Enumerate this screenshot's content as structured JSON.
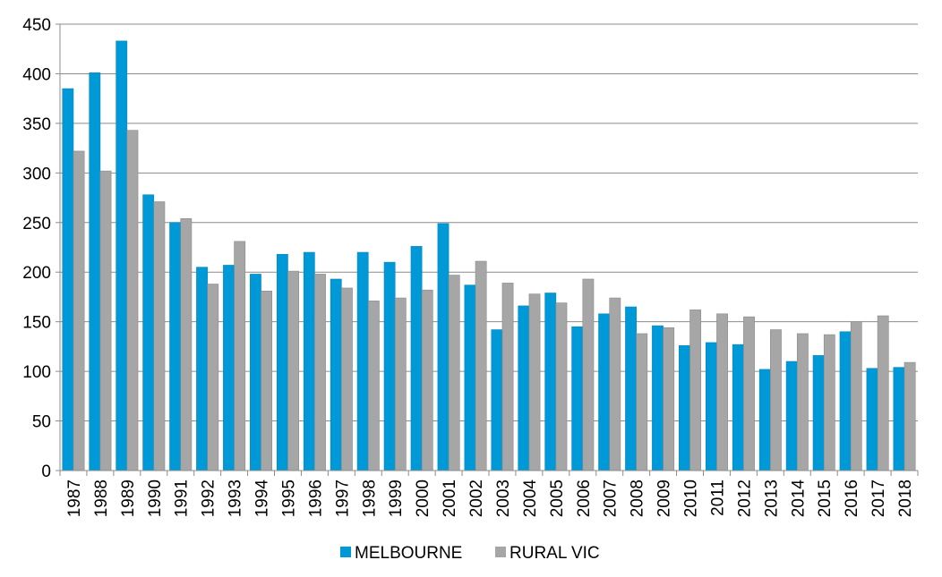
{
  "chart_data": {
    "type": "bar",
    "categories": [
      "1987",
      "1988",
      "1989",
      "1990",
      "1991",
      "1992",
      "1993",
      "1994",
      "1995",
      "1996",
      "1997",
      "1998",
      "1999",
      "2000",
      "2001",
      "2002",
      "2003",
      "2004",
      "2005",
      "2006",
      "2007",
      "2008",
      "2009",
      "2010",
      "2011",
      "2012",
      "2013",
      "2014",
      "2015",
      "2016",
      "2017",
      "2018"
    ],
    "series": [
      {
        "name": "MELBOURNE",
        "color": "#0099D8",
        "values": [
          385,
          401,
          433,
          278,
          250,
          205,
          207,
          198,
          218,
          220,
          193,
          220,
          210,
          226,
          249,
          187,
          142,
          166,
          179,
          145,
          158,
          165,
          146,
          126,
          129,
          127,
          102,
          110,
          116,
          140,
          103,
          104
        ]
      },
      {
        "name": "RURAL VIC",
        "color": "#A6A6A6",
        "values": [
          322,
          302,
          343,
          271,
          254,
          188,
          231,
          181,
          201,
          198,
          184,
          171,
          174,
          182,
          197,
          211,
          189,
          178,
          169,
          193,
          174,
          138,
          144,
          162,
          158,
          155,
          142,
          138,
          137,
          150,
          156,
          109
        ]
      }
    ],
    "ylim": [
      0,
      450
    ],
    "yticks": [
      "0",
      "50",
      "100",
      "150",
      "200",
      "250",
      "300",
      "350",
      "400",
      "450"
    ],
    "grid": true,
    "legend_position": "bottom"
  }
}
